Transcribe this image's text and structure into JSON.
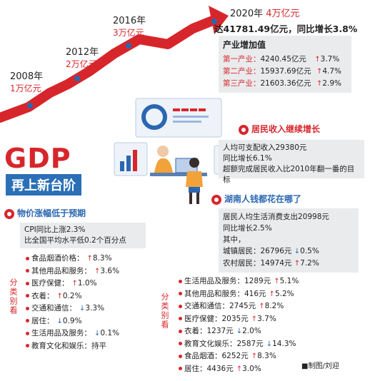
{
  "gdp_timeline": [
    {
      "year": "2008年",
      "amount": "1万亿元"
    },
    {
      "year": "2012年",
      "amount": "2万亿元"
    },
    {
      "year": "2016年",
      "amount": "3万亿元"
    },
    {
      "year": "2020年",
      "amount": "4万亿元"
    }
  ],
  "gdp_2020_detail": "达41781.49亿元，同比增长3.8%",
  "industry": {
    "title": "产业增加值",
    "rows": [
      {
        "label": "第一产业：",
        "value": "4240.45亿元",
        "change": "3.7%"
      },
      {
        "label": "第二产业：",
        "value": "15937.69亿元",
        "change": "4.7%"
      },
      {
        "label": "第三产业：",
        "value": "21603.36亿元",
        "change": "2.9%"
      }
    ]
  },
  "headline": {
    "main": "GDP",
    "sub": "再上新台阶"
  },
  "income": {
    "title": "居民收入继续增长",
    "lines": [
      "人均可支配收入29380元",
      "同比增长6.1%",
      "超额完成居民收入比2010年翻一番的目标"
    ]
  },
  "price": {
    "title": "物价涨幅低于预期",
    "lines": [
      "CPI同比上涨2.3%",
      "比全国平均水平低0.2个百分点"
    ],
    "category_label": "分类别看",
    "items": [
      {
        "name": "食品烟酒价格：",
        "dir": "up",
        "value": "8.3%"
      },
      {
        "name": "其他用品和服务：",
        "dir": "up",
        "value": "3.6%"
      },
      {
        "name": "医疗保健：",
        "dir": "up",
        "value": "1.0%"
      },
      {
        "name": "衣着：",
        "dir": "up",
        "value": "0.2%"
      },
      {
        "name": "交通和通信：",
        "dir": "down",
        "value": "3.3%"
      },
      {
        "name": "居住：",
        "dir": "down",
        "value": "0.9%"
      },
      {
        "name": "生活用品及服务：",
        "dir": "down",
        "value": "0.1%"
      },
      {
        "name": "教育文化和娱乐：",
        "dir": "",
        "value": "持平"
      }
    ]
  },
  "spending": {
    "title": "湖南人钱都花在哪了",
    "lines": [
      "居民人均生活消费支出20998元",
      "同比增长2.5%",
      "其中，"
    ],
    "urban": {
      "label": "城镇居民：26796元",
      "dir": "down",
      "value": "0.5%"
    },
    "rural": {
      "label": "农村居民：14974元",
      "dir": "up",
      "value": "7.2%"
    },
    "category_label": "分类别看",
    "items": [
      {
        "name": "生活用品及服务：1289元",
        "dir": "up",
        "value": "5.1%"
      },
      {
        "name": "其他用品和服务：416元",
        "dir": "up",
        "value": "5.2%"
      },
      {
        "name": "交通和通信：2745元",
        "dir": "up",
        "value": "8.2%"
      },
      {
        "name": "医疗保健：2035元",
        "dir": "up",
        "value": "3.7%"
      },
      {
        "name": "衣着：1237元",
        "dir": "down",
        "value": "2.0%"
      },
      {
        "name": "教育文化娱乐：2587元",
        "dir": "down",
        "value": "14.3%"
      },
      {
        "name": "食品烟酒：6252元",
        "dir": "up",
        "value": "8.3%"
      },
      {
        "name": "居住：4436元",
        "dir": "up",
        "value": "3.0%"
      }
    ]
  },
  "credit": "■制图/刘迎"
}
